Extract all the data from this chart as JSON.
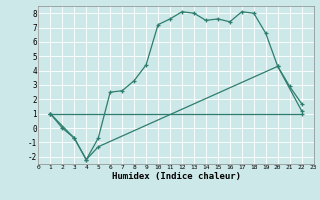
{
  "xlabel": "Humidex (Indice chaleur)",
  "xlim": [
    0,
    23
  ],
  "ylim": [
    -2.5,
    8.5
  ],
  "yticks": [
    -2,
    -1,
    0,
    1,
    2,
    3,
    4,
    5,
    6,
    7,
    8
  ],
  "xticks": [
    0,
    1,
    2,
    3,
    4,
    5,
    6,
    7,
    8,
    9,
    10,
    11,
    12,
    13,
    14,
    15,
    16,
    17,
    18,
    19,
    20,
    21,
    22,
    23
  ],
  "bg_color": "#cde8e8",
  "line_color": "#2e7d6e",
  "curves": [
    {
      "x": [
        1,
        2,
        3,
        4,
        5,
        6,
        7,
        8,
        9,
        10,
        11,
        12,
        13,
        14,
        15,
        16,
        17,
        18,
        19,
        20,
        21,
        22
      ],
      "y": [
        1,
        0,
        -0.7,
        -2.2,
        -0.7,
        2.5,
        2.6,
        3.3,
        4.4,
        7.2,
        7.6,
        8.1,
        8.0,
        7.5,
        7.6,
        7.4,
        8.1,
        8.0,
        6.6,
        4.3,
        2.9,
        1.7
      ]
    },
    {
      "x": [
        1,
        3,
        4,
        5,
        20,
        22
      ],
      "y": [
        1,
        -0.7,
        -2.2,
        -1.3,
        4.3,
        1.2
      ]
    },
    {
      "x": [
        1,
        22
      ],
      "y": [
        1,
        1.0
      ]
    }
  ]
}
